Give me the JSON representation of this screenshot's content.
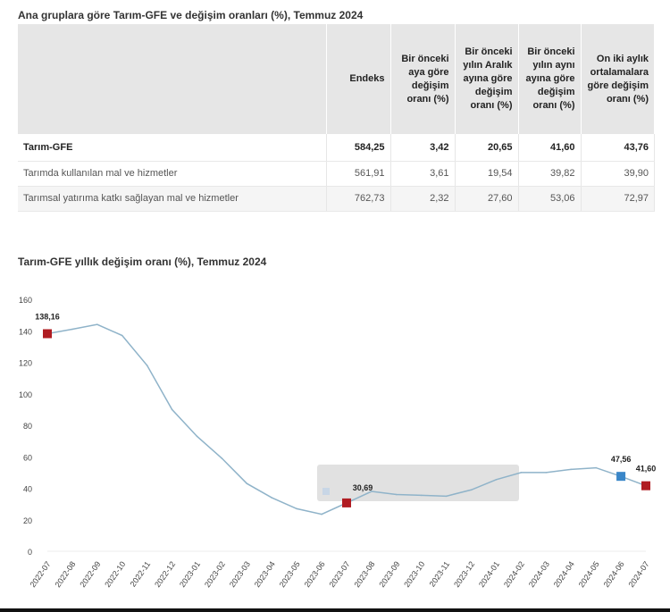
{
  "table": {
    "title": "Ana gruplara göre Tarım-GFE ve değişim oranları (%), Temmuz 2024",
    "headers": [
      "",
      "Endeks",
      "Bir önceki aya göre değişim oranı (%)",
      "Bir önceki yılın Aralık ayına göre değişim oranı (%)",
      "Bir önceki yılın aynı ayına göre değişim oranı (%)",
      "On iki aylık ortalamalara göre değişim oranı (%)"
    ],
    "rows": [
      [
        "Tarım-GFE",
        "584,25",
        "3,42",
        "20,65",
        "41,60",
        "43,76"
      ],
      [
        "Tarımda kullanılan mal ve hizmetler",
        "561,91",
        "3,61",
        "19,54",
        "39,82",
        "39,90"
      ],
      [
        "Tarımsal yatırıma katkı sağlayan mal ve hizmetler",
        "762,73",
        "2,32",
        "27,60",
        "53,06",
        "72,97"
      ]
    ]
  },
  "chart_data": {
    "type": "line",
    "title": "Tarım-GFE yıllık değişim oranı (%), Temmuz 2024",
    "xlabel": "",
    "ylabel": "",
    "ylim": [
      0,
      160
    ],
    "yticks": [
      0,
      20,
      40,
      60,
      80,
      100,
      120,
      140,
      160
    ],
    "categories": [
      "2022-07",
      "2022-08",
      "2022-09",
      "2022-10",
      "2022-11",
      "2022-12",
      "2023-01",
      "2023-02",
      "2023-03",
      "2023-04",
      "2023-05",
      "2023-06",
      "2023-07",
      "2023-08",
      "2023-09",
      "2023-10",
      "2023-11",
      "2023-12",
      "2024-01",
      "2024-02",
      "2024-03",
      "2024-04",
      "2024-05",
      "2024-06",
      "2024-07"
    ],
    "series": [
      {
        "name": "Tarım-GFE",
        "color": "#8fb3c9",
        "values": [
          138.16,
          141,
          144,
          137,
          118,
          90,
          73,
          59,
          43,
          34,
          27,
          23.5,
          30.69,
          38,
          36,
          35.5,
          35,
          39,
          45.5,
          50,
          50,
          52,
          53,
          47.56,
          41.6
        ]
      }
    ],
    "markers": [
      {
        "index": 0,
        "label": "138,16",
        "color": "#b01c22"
      },
      {
        "index": 12,
        "label": "30,69",
        "color": "#b01c22"
      },
      {
        "index": 23,
        "label": "47,56",
        "color": "#3a86c8"
      },
      {
        "index": 24,
        "label": "41,60",
        "color": "#b01c22"
      }
    ],
    "grid": false
  }
}
